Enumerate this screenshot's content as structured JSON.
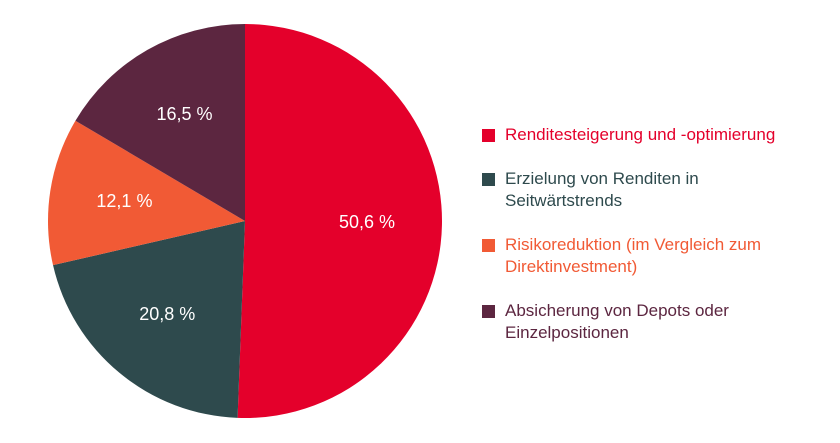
{
  "chart_data": {
    "type": "pie",
    "slices": [
      {
        "label": "Renditesteigerung und -optimierung",
        "value": 50.6,
        "display": "50,6 %",
        "color": "#e4002b",
        "text_color": "#e4002b"
      },
      {
        "label": "Erzielung von Renditen in\nSeitwärtstrends",
        "value": 20.8,
        "display": "20,8 %",
        "color": "#2e4a4d",
        "text_color": "#2e4a4d"
      },
      {
        "label": "Risikoreduktion (im Vergleich zum\nDirektinvestment)",
        "value": 12.1,
        "display": "12,1 %",
        "color": "#f15a35",
        "text_color": "#f15a35"
      },
      {
        "label": "Absicherung von Depots oder\nEinzelpositionen",
        "value": 16.5,
        "display": "16,5 %",
        "color": "#5c2640",
        "text_color": "#5c2640"
      }
    ],
    "start_angle": "top",
    "direction": "clockwise",
    "legend_position": "right"
  }
}
